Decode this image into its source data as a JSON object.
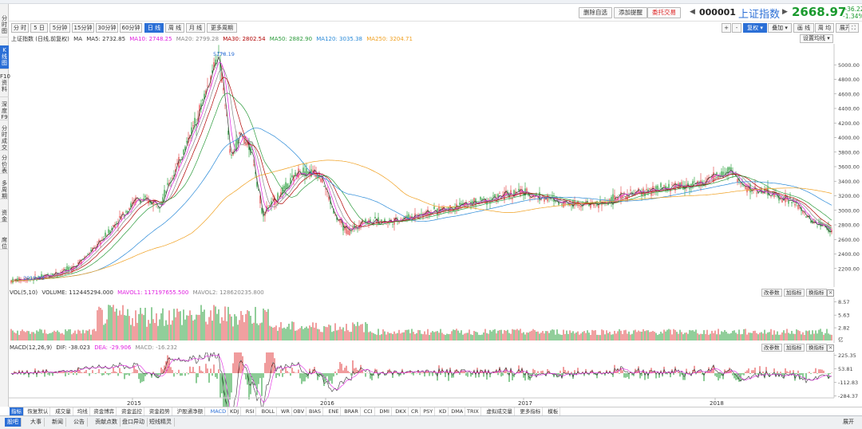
{
  "left_nav": [
    {
      "label": "分时图"
    },
    {
      "label": "K线图"
    },
    {
      "label": "F10资料"
    },
    {
      "label": "深度F9"
    },
    {
      "label": "分时成交"
    },
    {
      "label": "分价表"
    },
    {
      "label": "多周期"
    },
    {
      "label": "资金"
    },
    {
      "label": "席位"
    }
  ],
  "header": {
    "buttons": [
      "删除自选",
      "添加提醒",
      "委托交易"
    ],
    "index_code": "000001",
    "index_name": "上证指数",
    "price": "2668.97",
    "change": "-36.22",
    "change_pct": "-1.34%",
    "price_color": "#1a9a2e"
  },
  "periods": [
    "分 时",
    "5 日",
    "5分钟",
    "15分钟",
    "30分钟",
    "60分钟",
    "日 线",
    "周 线",
    "月 线",
    "更多周期"
  ],
  "active_period": "日 线",
  "right_toolbar": [
    "+",
    "-",
    "复权",
    "叠加",
    "画 线",
    "周 均",
    "展开"
  ],
  "ma_legend": {
    "title": "上证指数 (日线,前复权)",
    "items": [
      {
        "label": "MA",
        "color": "#333333"
      },
      {
        "label": "MA5: 2732.85",
        "color": "#333333"
      },
      {
        "label": "MA10: 2748.25",
        "color": "#e020e0"
      },
      {
        "label": "MA20: 2799.28",
        "color": "#888888"
      },
      {
        "label": "MA30: 2802.54",
        "color": "#b00000"
      },
      {
        "label": "MA50: 2882.90",
        "color": "#2a9a3a"
      },
      {
        "label": "MA120: 3035.38",
        "color": "#2a8ad8"
      },
      {
        "label": "MA250: 3204.71",
        "color": "#f0a020"
      }
    ],
    "settings": "设置均线"
  },
  "price_chart": {
    "high_label": "5178.19",
    "low_label": "2010.93",
    "y_ticks": [
      "5000.00",
      "4800.00",
      "4600.00",
      "4400.00",
      "4200.00",
      "4000.00",
      "3800.00",
      "3600.00",
      "3400.00",
      "3200.00",
      "3000.00",
      "2800.00",
      "2600.00",
      "2400.00",
      "2200.00"
    ]
  },
  "volume_panel": {
    "items": [
      {
        "label": "VOL(5,10)",
        "color": "#333333"
      },
      {
        "label": "VOLUME: 112445294.000",
        "color": "#333333"
      },
      {
        "label": "MAVOL1: 117197655.500",
        "color": "#e020e0"
      },
      {
        "label": "MAVOL2: 128620235.800",
        "color": "#888888"
      }
    ],
    "buttons": [
      "改参数",
      "加指标",
      "换指标"
    ],
    "y_ticks": [
      "8.57",
      "5.63",
      "2.82"
    ],
    "unit": "亿"
  },
  "macd_panel": {
    "items": [
      {
        "label": "MACD(12,26,9)",
        "color": "#333333"
      },
      {
        "label": "DIF: -38.023",
        "color": "#333333"
      },
      {
        "label": "DEA: -29.906",
        "color": "#e020e0"
      },
      {
        "label": "MACD: -16.232",
        "color": "#888888"
      }
    ],
    "buttons": [
      "改参数",
      "加指标",
      "换指标"
    ],
    "y_ticks": [
      "225.35",
      "53.81",
      "-112.83",
      "-284.37"
    ]
  },
  "x_axis": [
    "2015",
    "2016",
    "2017",
    "2018"
  ],
  "indicator_tabs": [
    "指标",
    "恢复默认",
    "成交量",
    "均线",
    "资金博弈",
    "资金监控",
    "资金趋势",
    "沪股通净额",
    "MACD",
    "KDJ",
    "RSI",
    "BOLL",
    "WR",
    "OBV",
    "BIAS",
    "ENE",
    "BRAR",
    "CCI",
    "DMI",
    "DKX",
    "CR",
    "PSY",
    "KD",
    "DMA",
    "TRIX",
    "虚拟成交量",
    "更多指标",
    "模板"
  ],
  "bottom_tabs": [
    "股吧",
    "大事",
    "新闻",
    "公告",
    "贡献点数",
    "盘口异动",
    "短线精灵"
  ],
  "bottom_right": "展开",
  "colors": {
    "accent": "#2b6fd6",
    "up": "#e0383b",
    "down": "#1a9a2e"
  }
}
